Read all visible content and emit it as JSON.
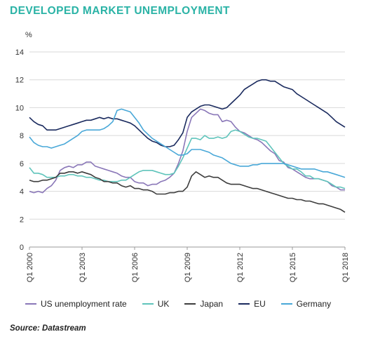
{
  "title": "DEVELOPED MARKET UNEMPLOYMENT",
  "y_unit": "%",
  "source": "Source: Datastream",
  "chart_data": {
    "type": "line",
    "title": "DEVELOPED MARKET UNEMPLOYMENT",
    "ylabel": "%",
    "xlabel": "",
    "ylim": [
      0,
      14
    ],
    "xlim": [
      2000.0,
      2018.0
    ],
    "y_ticks": [
      0,
      2,
      4,
      6,
      8,
      10,
      12,
      14
    ],
    "x_ticks": [
      {
        "value": 2000.0,
        "label": "Q1 2000"
      },
      {
        "value": 2003.0,
        "label": "Q1 2003"
      },
      {
        "value": 2006.0,
        "label": "Q1 2006"
      },
      {
        "value": 2009.0,
        "label": "Q1 2009"
      },
      {
        "value": 2012.0,
        "label": "Q1 2012"
      },
      {
        "value": 2015.0,
        "label": "Q1 2015"
      },
      {
        "value": 2018.0,
        "label": "Q1 2018"
      }
    ],
    "grid": "horizontal",
    "legend_position": "bottom",
    "series": [
      {
        "name": "US unemployment rate",
        "color": "#8a77b8",
        "x": [
          2000.0,
          2000.25,
          2000.5,
          2000.75,
          2001.0,
          2001.25,
          2001.5,
          2001.75,
          2002.0,
          2002.25,
          2002.5,
          2002.75,
          2003.0,
          2003.25,
          2003.5,
          2003.75,
          2004.0,
          2004.25,
          2004.5,
          2004.75,
          2005.0,
          2005.25,
          2005.5,
          2005.75,
          2006.0,
          2006.25,
          2006.5,
          2006.75,
          2007.0,
          2007.25,
          2007.5,
          2007.75,
          2008.0,
          2008.25,
          2008.5,
          2008.75,
          2009.0,
          2009.25,
          2009.5,
          2009.75,
          2010.0,
          2010.25,
          2010.5,
          2010.75,
          2011.0,
          2011.25,
          2011.5,
          2011.75,
          2012.0,
          2012.25,
          2012.5,
          2012.75,
          2013.0,
          2013.25,
          2013.5,
          2013.75,
          2014.0,
          2014.25,
          2014.5,
          2014.75,
          2015.0,
          2015.25,
          2015.5,
          2015.75,
          2016.0,
          2016.25,
          2016.5,
          2016.75,
          2017.0,
          2017.25,
          2017.5,
          2017.75,
          2018.0
        ],
        "y": [
          4.0,
          3.9,
          4.0,
          3.9,
          4.2,
          4.4,
          4.8,
          5.5,
          5.7,
          5.8,
          5.7,
          5.9,
          5.9,
          6.1,
          6.1,
          5.8,
          5.7,
          5.6,
          5.5,
          5.4,
          5.3,
          5.1,
          5.0,
          5.0,
          4.7,
          4.6,
          4.6,
          4.4,
          4.5,
          4.5,
          4.7,
          4.8,
          5.0,
          5.3,
          6.0,
          6.9,
          8.3,
          9.3,
          9.6,
          9.9,
          9.8,
          9.6,
          9.5,
          9.5,
          9.0,
          9.1,
          9.0,
          8.6,
          8.3,
          8.2,
          8.0,
          7.8,
          7.7,
          7.5,
          7.2,
          6.9,
          6.7,
          6.2,
          6.1,
          5.7,
          5.6,
          5.4,
          5.2,
          5.0,
          4.9,
          4.9,
          4.9,
          4.8,
          4.7,
          4.4,
          4.3,
          4.1,
          4.1
        ]
      },
      {
        "name": "UK",
        "color": "#5fc4bb",
        "x": [
          2000.0,
          2000.25,
          2000.5,
          2000.75,
          2001.0,
          2001.25,
          2001.5,
          2001.75,
          2002.0,
          2002.25,
          2002.5,
          2002.75,
          2003.0,
          2003.25,
          2003.5,
          2003.75,
          2004.0,
          2004.25,
          2004.5,
          2004.75,
          2005.0,
          2005.25,
          2005.5,
          2005.75,
          2006.0,
          2006.25,
          2006.5,
          2006.75,
          2007.0,
          2007.25,
          2007.5,
          2007.75,
          2008.0,
          2008.25,
          2008.5,
          2008.75,
          2009.0,
          2009.25,
          2009.5,
          2009.75,
          2010.0,
          2010.25,
          2010.5,
          2010.75,
          2011.0,
          2011.25,
          2011.5,
          2011.75,
          2012.0,
          2012.25,
          2012.5,
          2012.75,
          2013.0,
          2013.25,
          2013.5,
          2013.75,
          2014.0,
          2014.25,
          2014.5,
          2014.75,
          2015.0,
          2015.25,
          2015.5,
          2015.75,
          2016.0,
          2016.25,
          2016.5,
          2016.75,
          2017.0,
          2017.25,
          2017.5,
          2017.75,
          2018.0
        ],
        "y": [
          5.7,
          5.3,
          5.3,
          5.2,
          5.0,
          5.0,
          5.0,
          5.1,
          5.1,
          5.2,
          5.2,
          5.1,
          5.1,
          5.0,
          5.0,
          4.9,
          4.8,
          4.8,
          4.7,
          4.7,
          4.7,
          4.8,
          4.8,
          5.0,
          5.2,
          5.4,
          5.5,
          5.5,
          5.5,
          5.4,
          5.3,
          5.2,
          5.2,
          5.3,
          5.8,
          6.4,
          7.1,
          7.8,
          7.8,
          7.7,
          8.0,
          7.8,
          7.8,
          7.9,
          7.8,
          7.9,
          8.3,
          8.4,
          8.3,
          8.1,
          7.9,
          7.8,
          7.8,
          7.7,
          7.6,
          7.2,
          6.8,
          6.4,
          6.0,
          5.8,
          5.6,
          5.6,
          5.4,
          5.1,
          5.1,
          4.9,
          4.9,
          4.8,
          4.7,
          4.5,
          4.3,
          4.3,
          4.2
        ]
      },
      {
        "name": "Japan",
        "color": "#3d3d3d",
        "x": [
          2000.0,
          2000.25,
          2000.5,
          2000.75,
          2001.0,
          2001.25,
          2001.5,
          2001.75,
          2002.0,
          2002.25,
          2002.5,
          2002.75,
          2003.0,
          2003.25,
          2003.5,
          2003.75,
          2004.0,
          2004.25,
          2004.5,
          2004.75,
          2005.0,
          2005.25,
          2005.5,
          2005.75,
          2006.0,
          2006.25,
          2006.5,
          2006.75,
          2007.0,
          2007.25,
          2007.5,
          2007.75,
          2008.0,
          2008.25,
          2008.5,
          2008.75,
          2009.0,
          2009.25,
          2009.5,
          2009.75,
          2010.0,
          2010.25,
          2010.5,
          2010.75,
          2011.0,
          2011.25,
          2011.5,
          2011.75,
          2012.0,
          2012.25,
          2012.5,
          2012.75,
          2013.0,
          2013.25,
          2013.5,
          2013.75,
          2014.0,
          2014.25,
          2014.5,
          2014.75,
          2015.0,
          2015.25,
          2015.5,
          2015.75,
          2016.0,
          2016.25,
          2016.5,
          2016.75,
          2017.0,
          2017.25,
          2017.5,
          2017.75,
          2018.0
        ],
        "y": [
          4.8,
          4.7,
          4.7,
          4.8,
          4.8,
          4.9,
          5.0,
          5.3,
          5.3,
          5.4,
          5.4,
          5.3,
          5.4,
          5.3,
          5.2,
          5.0,
          4.9,
          4.7,
          4.7,
          4.6,
          4.6,
          4.4,
          4.3,
          4.4,
          4.2,
          4.2,
          4.1,
          4.1,
          4.0,
          3.8,
          3.8,
          3.8,
          3.9,
          3.9,
          4.0,
          4.0,
          4.3,
          5.1,
          5.4,
          5.2,
          5.0,
          5.1,
          5.0,
          5.0,
          4.8,
          4.6,
          4.5,
          4.5,
          4.5,
          4.4,
          4.3,
          4.2,
          4.2,
          4.1,
          4.0,
          3.9,
          3.8,
          3.7,
          3.6,
          3.5,
          3.5,
          3.4,
          3.4,
          3.3,
          3.3,
          3.2,
          3.1,
          3.1,
          3.0,
          2.9,
          2.8,
          2.7,
          2.5
        ]
      },
      {
        "name": "EU",
        "color": "#1a2a5e",
        "x": [
          2000.0,
          2000.25,
          2000.5,
          2000.75,
          2001.0,
          2001.25,
          2001.5,
          2001.75,
          2002.0,
          2002.25,
          2002.5,
          2002.75,
          2003.0,
          2003.25,
          2003.5,
          2003.75,
          2004.0,
          2004.25,
          2004.5,
          2004.75,
          2005.0,
          2005.25,
          2005.5,
          2005.75,
          2006.0,
          2006.25,
          2006.5,
          2006.75,
          2007.0,
          2007.25,
          2007.5,
          2007.75,
          2008.0,
          2008.25,
          2008.5,
          2008.75,
          2009.0,
          2009.25,
          2009.5,
          2009.75,
          2010.0,
          2010.25,
          2010.5,
          2010.75,
          2011.0,
          2011.25,
          2011.5,
          2011.75,
          2012.0,
          2012.25,
          2012.5,
          2012.75,
          2013.0,
          2013.25,
          2013.5,
          2013.75,
          2014.0,
          2014.25,
          2014.5,
          2014.75,
          2015.0,
          2015.25,
          2015.5,
          2015.75,
          2016.0,
          2016.25,
          2016.5,
          2016.75,
          2017.0,
          2017.25,
          2017.5,
          2017.75,
          2018.0
        ],
        "y": [
          9.3,
          9.0,
          8.8,
          8.7,
          8.4,
          8.4,
          8.4,
          8.5,
          8.6,
          8.7,
          8.8,
          8.9,
          9.0,
          9.1,
          9.1,
          9.2,
          9.3,
          9.2,
          9.3,
          9.2,
          9.2,
          9.1,
          9.0,
          8.9,
          8.7,
          8.4,
          8.1,
          7.8,
          7.6,
          7.5,
          7.3,
          7.2,
          7.2,
          7.3,
          7.7,
          8.2,
          9.3,
          9.7,
          9.9,
          10.1,
          10.2,
          10.2,
          10.1,
          10.0,
          9.9,
          10.0,
          10.3,
          10.6,
          10.9,
          11.3,
          11.5,
          11.7,
          11.9,
          12.0,
          12.0,
          11.9,
          11.9,
          11.7,
          11.5,
          11.4,
          11.3,
          11.0,
          10.8,
          10.6,
          10.4,
          10.2,
          10.0,
          9.8,
          9.6,
          9.3,
          9.0,
          8.8,
          8.6
        ]
      },
      {
        "name": "Germany",
        "color": "#49a8d8",
        "x": [
          2000.0,
          2000.25,
          2000.5,
          2000.75,
          2001.0,
          2001.25,
          2001.5,
          2001.75,
          2002.0,
          2002.25,
          2002.5,
          2002.75,
          2003.0,
          2003.25,
          2003.5,
          2003.75,
          2004.0,
          2004.25,
          2004.5,
          2004.75,
          2005.0,
          2005.25,
          2005.5,
          2005.75,
          2006.0,
          2006.25,
          2006.5,
          2006.75,
          2007.0,
          2007.25,
          2007.5,
          2007.75,
          2008.0,
          2008.25,
          2008.5,
          2008.75,
          2009.0,
          2009.25,
          2009.5,
          2009.75,
          2010.0,
          2010.25,
          2010.5,
          2010.75,
          2011.0,
          2011.25,
          2011.5,
          2011.75,
          2012.0,
          2012.25,
          2012.5,
          2012.75,
          2013.0,
          2013.25,
          2013.5,
          2013.75,
          2014.0,
          2014.25,
          2014.5,
          2014.75,
          2015.0,
          2015.25,
          2015.5,
          2015.75,
          2016.0,
          2016.25,
          2016.5,
          2016.75,
          2017.0,
          2017.25,
          2017.5,
          2017.75,
          2018.0
        ],
        "y": [
          7.9,
          7.5,
          7.3,
          7.2,
          7.2,
          7.1,
          7.2,
          7.3,
          7.4,
          7.6,
          7.8,
          8.0,
          8.3,
          8.4,
          8.4,
          8.4,
          8.4,
          8.5,
          8.7,
          9.0,
          9.8,
          9.9,
          9.8,
          9.7,
          9.3,
          8.9,
          8.4,
          8.1,
          7.8,
          7.6,
          7.4,
          7.2,
          7.0,
          6.8,
          6.6,
          6.6,
          6.7,
          7.0,
          7.0,
          7.0,
          6.9,
          6.8,
          6.6,
          6.5,
          6.4,
          6.2,
          6.0,
          5.9,
          5.8,
          5.8,
          5.8,
          5.9,
          5.9,
          6.0,
          6.0,
          6.0,
          6.0,
          6.0,
          6.0,
          5.9,
          5.8,
          5.7,
          5.6,
          5.6,
          5.6,
          5.6,
          5.5,
          5.4,
          5.4,
          5.3,
          5.2,
          5.1,
          5.0
        ]
      }
    ]
  }
}
